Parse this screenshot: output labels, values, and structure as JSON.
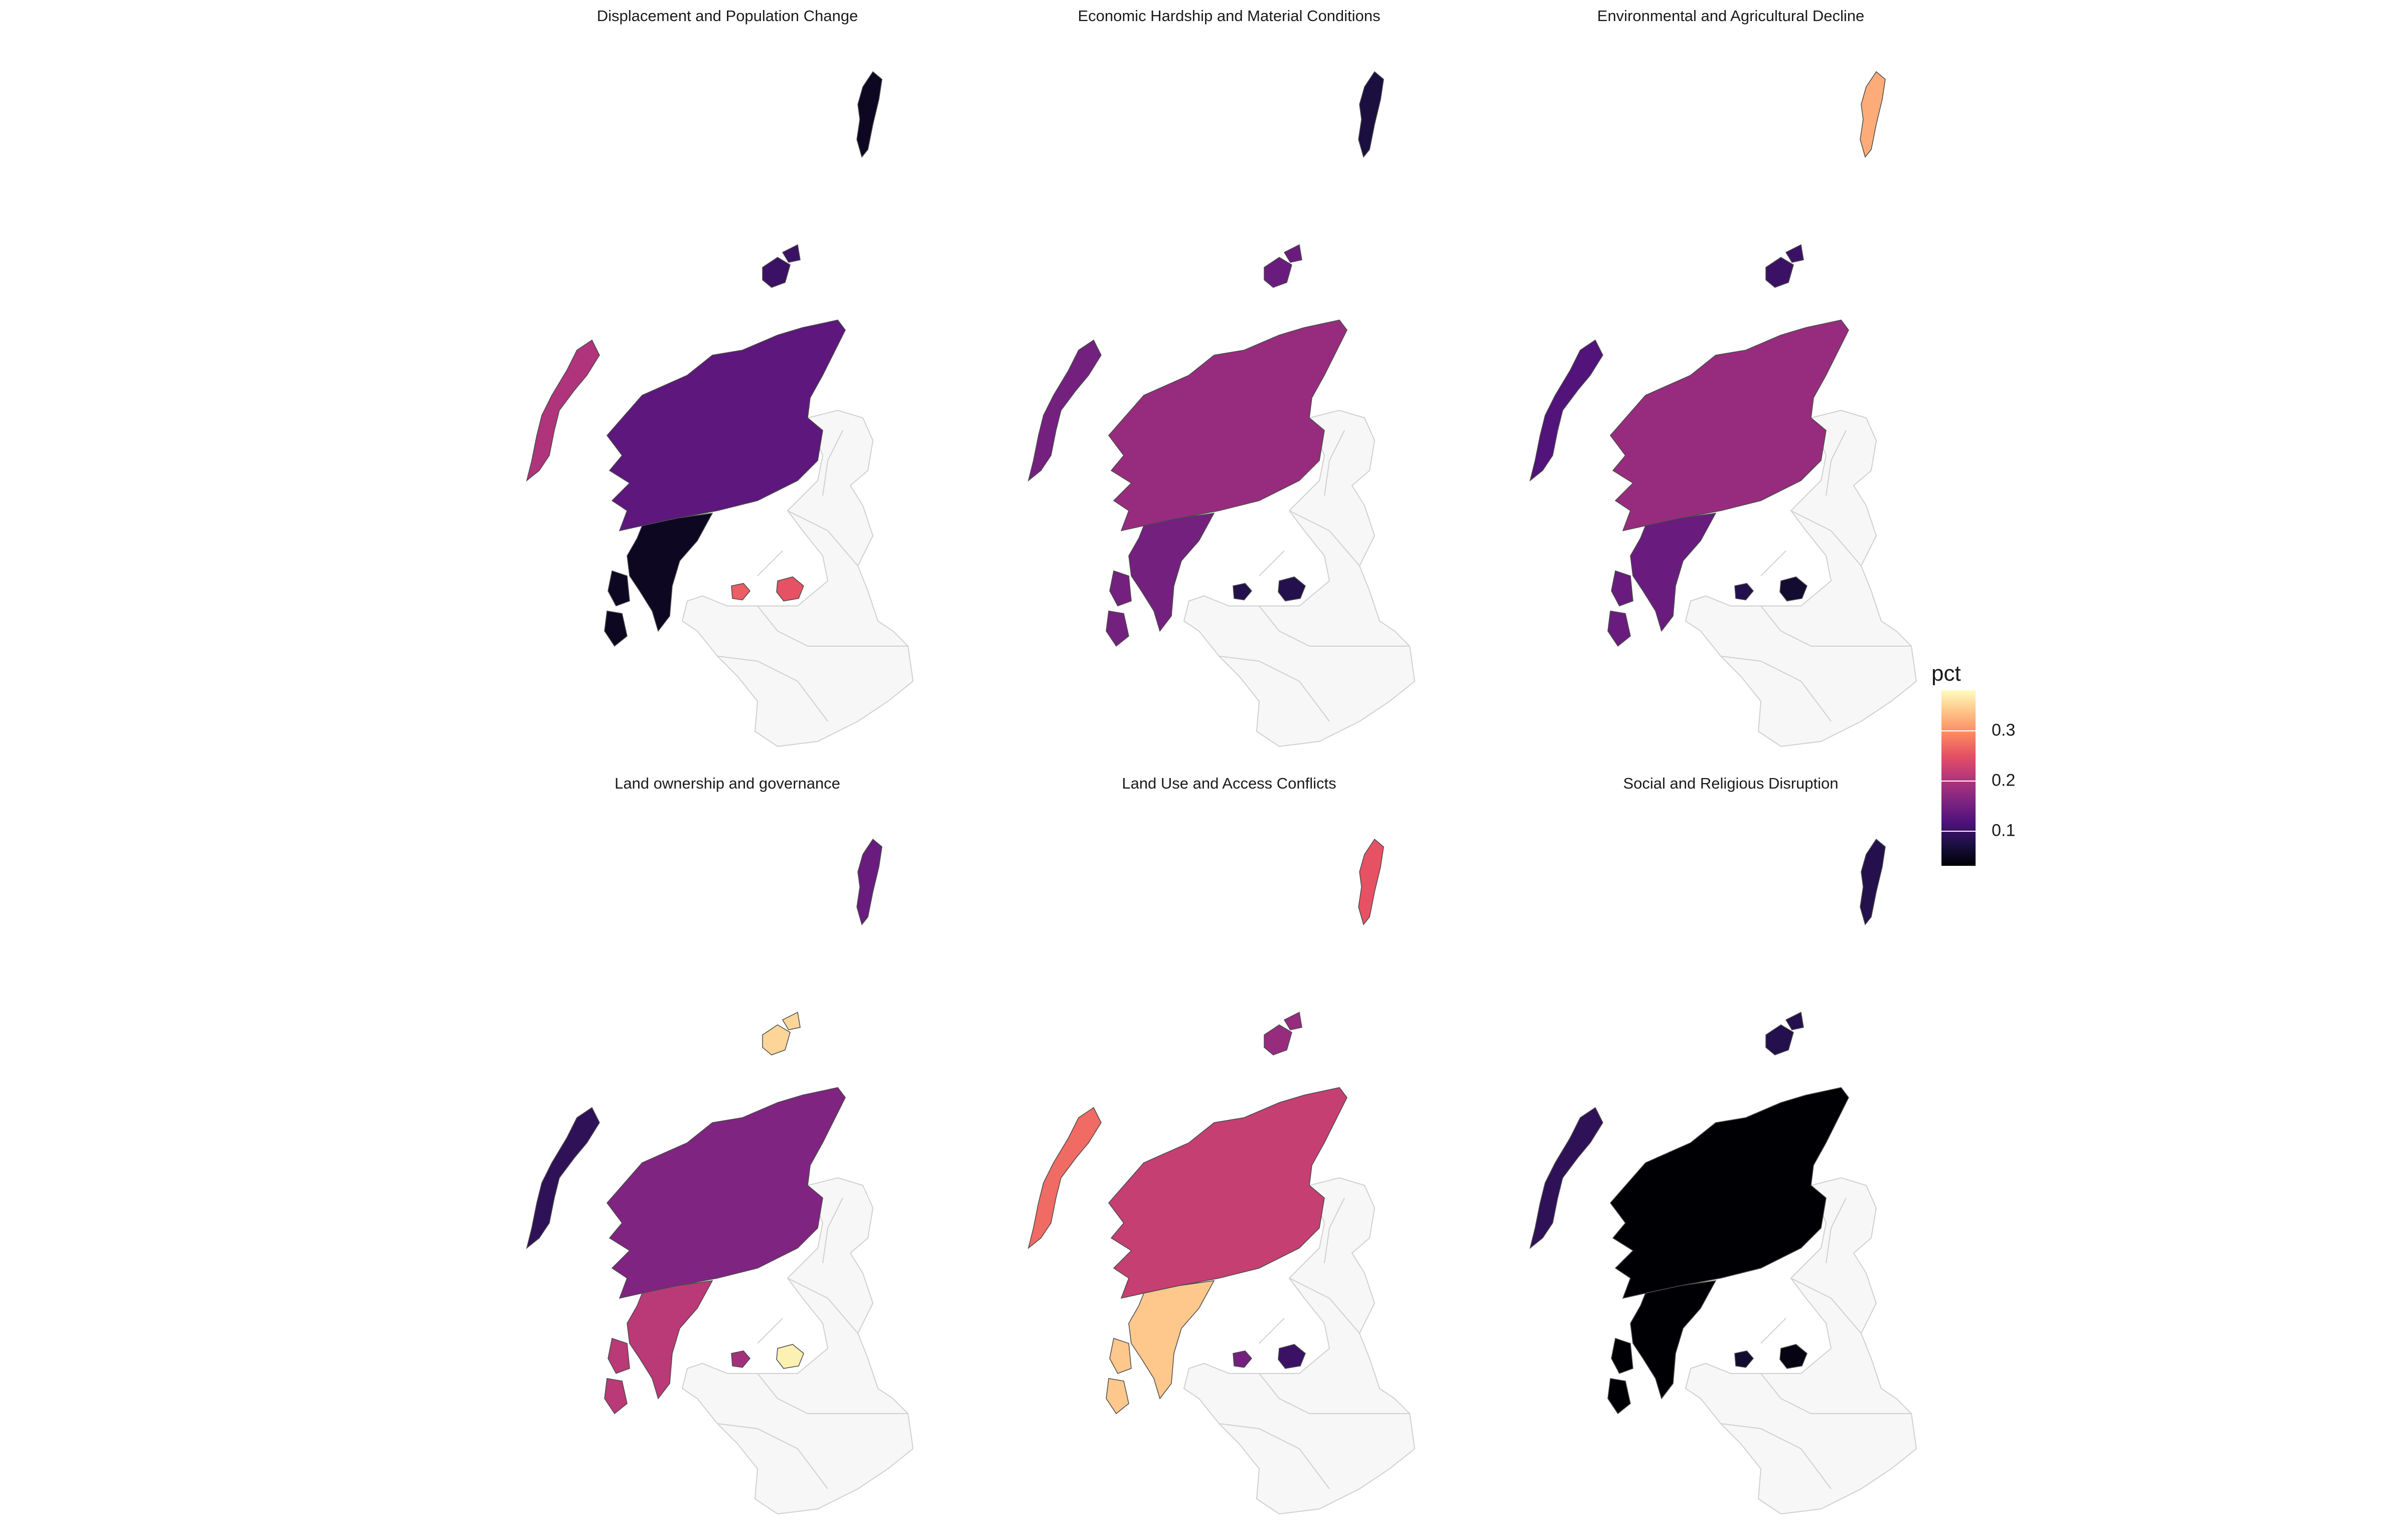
{
  "legend": {
    "title": "pct",
    "ticks": [
      "0.3",
      "0.2",
      "0.1"
    ],
    "tick_values": [
      0.3,
      0.2,
      0.1
    ],
    "range": [
      0.03,
      0.38
    ]
  },
  "colors": {
    "magma_stops": [
      "#000004",
      "#1c1044",
      "#4f127b",
      "#812581",
      "#b5367a",
      "#e55064",
      "#fb8761",
      "#fec287",
      "#fcfdbf"
    ],
    "no_data_fill": "#f7f7f7",
    "no_data_stroke": "#d0d0d0",
    "region_stroke": "#4a4a4a"
  },
  "panels": [
    {
      "title": "Displacement and Population Change",
      "values": {
        "highland": 0.13,
        "argyll": 0.05,
        "western_isles": 0.2,
        "orkney": 0.1,
        "shetland": 0.05,
        "stirling": 0.26,
        "perth": 0.25
      }
    },
    {
      "title": "Economic Hardship and Material Conditions",
      "values": {
        "highland": 0.18,
        "argyll": 0.15,
        "western_isles": 0.15,
        "orkney": 0.14,
        "shetland": 0.07,
        "stirling": 0.08,
        "perth": 0.08
      }
    },
    {
      "title": "Environmental and Agricultural Decline",
      "values": {
        "highland": 0.18,
        "argyll": 0.14,
        "western_isles": 0.12,
        "orkney": 0.1,
        "shetland": 0.32,
        "stirling": 0.08,
        "perth": 0.06
      }
    },
    {
      "title": "Land ownership and governance",
      "values": {
        "highland": 0.16,
        "argyll": 0.21,
        "western_isles": 0.09,
        "orkney": 0.35,
        "shetland": 0.14,
        "stirling": 0.19,
        "perth": 0.37
      }
    },
    {
      "title": "Land Use and Access Conflicts",
      "values": {
        "highland": 0.22,
        "argyll": 0.34,
        "western_isles": 0.27,
        "orkney": 0.18,
        "shetland": 0.25,
        "stirling": 0.15,
        "perth": 0.1
      }
    },
    {
      "title": "Social and Religious Disruption",
      "values": {
        "highland": 0.03,
        "argyll": 0.03,
        "western_isles": 0.09,
        "orkney": 0.08,
        "shetland": 0.08,
        "stirling": 0.06,
        "perth": 0.04
      }
    }
  ]
}
